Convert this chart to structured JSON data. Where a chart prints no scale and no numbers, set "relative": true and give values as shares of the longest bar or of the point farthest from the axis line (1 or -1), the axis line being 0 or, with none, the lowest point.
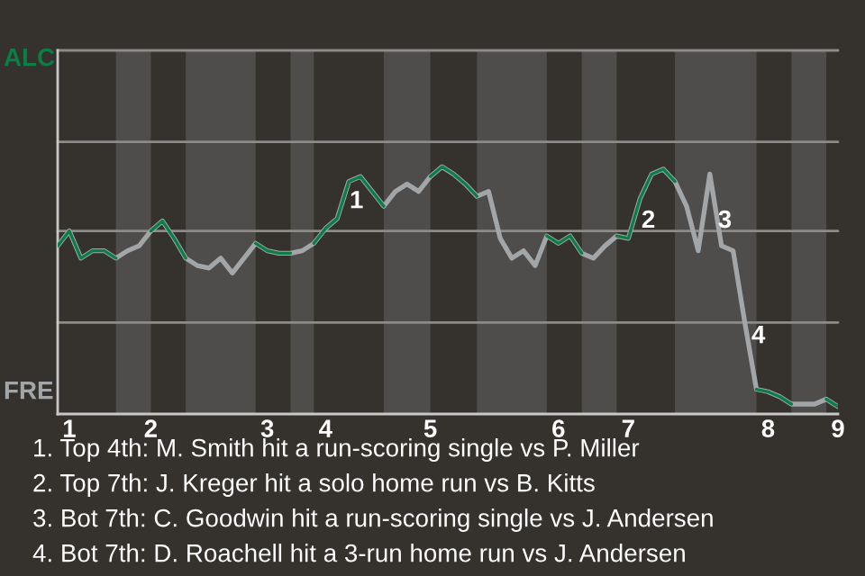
{
  "chart_data": {
    "type": "line",
    "relative": true,
    "categories": [
      null,
      "1",
      null,
      null,
      null,
      null,
      null,
      null,
      "2",
      null,
      null,
      null,
      null,
      null,
      null,
      null,
      null,
      null,
      "3",
      null,
      null,
      null,
      null,
      "4",
      null,
      null,
      null,
      null,
      null,
      null,
      null,
      null,
      "5",
      null,
      null,
      null,
      null,
      null,
      null,
      null,
      null,
      null,
      null,
      "6",
      null,
      null,
      null,
      null,
      null,
      "7",
      null,
      null,
      null,
      null,
      null,
      null,
      null,
      null,
      null,
      null,
      null,
      "8",
      null,
      null,
      null,
      null,
      null,
      "9"
    ],
    "series": [
      {
        "color": "#0b7d47",
        "values": [
          0.68,
          0.74,
          0.63,
          0.66,
          0.66,
          0.63,
          null,
          null,
          0.74,
          0.78,
          0.71,
          0.63,
          null,
          null,
          null,
          null,
          null,
          0.69,
          0.66,
          0.65,
          0.65,
          null,
          0.69,
          0.75,
          0.79,
          0.94,
          0.96,
          0.9,
          0.84,
          null,
          null,
          null,
          0.96,
          1,
          0.97,
          0.93,
          0.88,
          null,
          null,
          null,
          null,
          null,
          0.72,
          0.69,
          0.72,
          0.65,
          null,
          null,
          0.72,
          0.71,
          0.87,
          0.97,
          0.99,
          0.94,
          null,
          null,
          null,
          null,
          null,
          null,
          0.1,
          0.09,
          0.07,
          0.04,
          null,
          null,
          0.06,
          0.03
        ]
      },
      {
        "color": "#a3a6a9",
        "values": [
          0.68,
          0.74,
          0.63,
          0.66,
          0.66,
          0.63,
          0.66,
          0.68,
          0.74,
          0.78,
          0.71,
          0.63,
          0.6,
          0.59,
          0.63,
          0.57,
          0.63,
          0.69,
          0.66,
          0.65,
          0.65,
          0.66,
          0.69,
          0.75,
          0.79,
          0.94,
          0.96,
          0.9,
          0.84,
          0.9,
          0.93,
          0.9,
          0.96,
          1,
          0.97,
          0.93,
          0.88,
          0.9,
          0.71,
          0.63,
          0.66,
          0.6,
          0.72,
          0.69,
          0.72,
          0.65,
          0.63,
          0.68,
          0.72,
          0.71,
          0.87,
          0.97,
          0.99,
          0.94,
          0.84,
          0.66,
          0.97,
          0.68,
          0.66,
          0.37,
          0.1,
          0.09,
          0.07,
          0.04,
          0.04,
          0.04,
          0.06,
          0.03
        ]
      }
    ],
    "ref_lines": [
      {
        "axis": "y",
        "value": 0.37,
        "color": "#8d8b89"
      },
      {
        "axis": "y",
        "value": 0.74,
        "color": "#8d8b89"
      },
      {
        "axis": "y",
        "value": 1.1,
        "color": "#8d8b89"
      },
      {
        "axis": "y",
        "value": 1.47,
        "color": "#8d8b89"
      }
    ],
    "annotations": [
      "ALC",
      "FRE",
      "1",
      "2",
      "3",
      "4",
      "1. Top 4th: M. Smith hit a run-scoring single vs P. Miller",
      "2. Top 7th: J. Kreger hit a solo home run vs B. Kitts",
      "3. Bot 7th: C. Goodwin hit a run-scoring single vs J. Andersen",
      "4. Bot 7th: D. Roachell hit a 3-run home run vs J. Andersen"
    ]
  }
}
